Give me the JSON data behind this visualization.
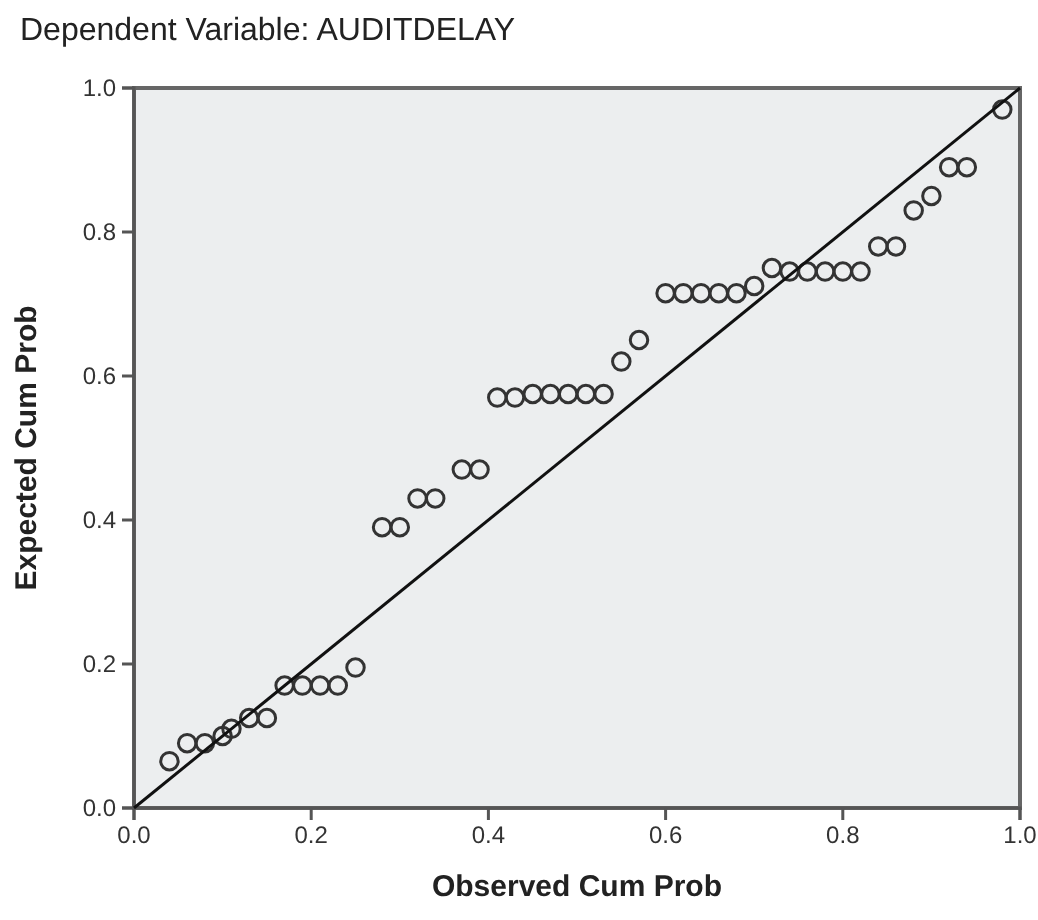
{
  "chart_data": {
    "type": "scatter",
    "title": "Dependent Variable: AUDITDELAY",
    "xlabel": "Observed Cum Prob",
    "ylabel": "Expected Cum Prob",
    "xlim": [
      0,
      1
    ],
    "ylim": [
      0,
      1
    ],
    "xticks": [
      {
        "value": 0,
        "label": "0.0"
      },
      {
        "value": 0.2,
        "label": "0.2"
      },
      {
        "value": 0.4,
        "label": "0.4"
      },
      {
        "value": 0.6,
        "label": "0.6"
      },
      {
        "value": 0.8,
        "label": "0.8"
      },
      {
        "value": 1,
        "label": "1.0"
      }
    ],
    "yticks": [
      {
        "value": 0,
        "label": "0.0"
      },
      {
        "value": 0.2,
        "label": "0.2"
      },
      {
        "value": 0.4,
        "label": "0.4"
      },
      {
        "value": 0.6,
        "label": "0.6"
      },
      {
        "value": 0.8,
        "label": "0.8"
      },
      {
        "value": 1,
        "label": "1.0"
      }
    ],
    "grid": false,
    "marker": "circle",
    "series": [
      {
        "color": "#333333",
        "x": [
          0.04,
          0.06,
          0.08,
          0.1,
          0.11,
          0.13,
          0.15,
          0.17,
          0.19,
          0.21,
          0.23,
          0.25,
          0.28,
          0.3,
          0.32,
          0.34,
          0.37,
          0.39,
          0.41,
          0.43,
          0.45,
          0.47,
          0.49,
          0.51,
          0.53,
          0.55,
          0.57,
          0.6,
          0.62,
          0.64,
          0.66,
          0.68,
          0.7,
          0.72,
          0.74,
          0.76,
          0.78,
          0.8,
          0.82,
          0.84,
          0.86,
          0.88,
          0.9,
          0.92,
          0.94,
          0.98
        ],
        "values": [
          0.065,
          0.09,
          0.09,
          0.1,
          0.11,
          0.125,
          0.125,
          0.17,
          0.17,
          0.17,
          0.17,
          0.195,
          0.39,
          0.39,
          0.43,
          0.43,
          0.47,
          0.47,
          0.57,
          0.57,
          0.575,
          0.575,
          0.575,
          0.575,
          0.575,
          0.62,
          0.65,
          0.715,
          0.715,
          0.715,
          0.715,
          0.715,
          0.725,
          0.75,
          0.745,
          0.745,
          0.745,
          0.745,
          0.745,
          0.78,
          0.78,
          0.83,
          0.85,
          0.89,
          0.89,
          0.97
        ]
      },
      {
        "type": "line",
        "color": "#111111",
        "line_style": "solid",
        "marker": "none",
        "x": [
          0,
          1
        ],
        "values": [
          0,
          1
        ]
      }
    ]
  }
}
